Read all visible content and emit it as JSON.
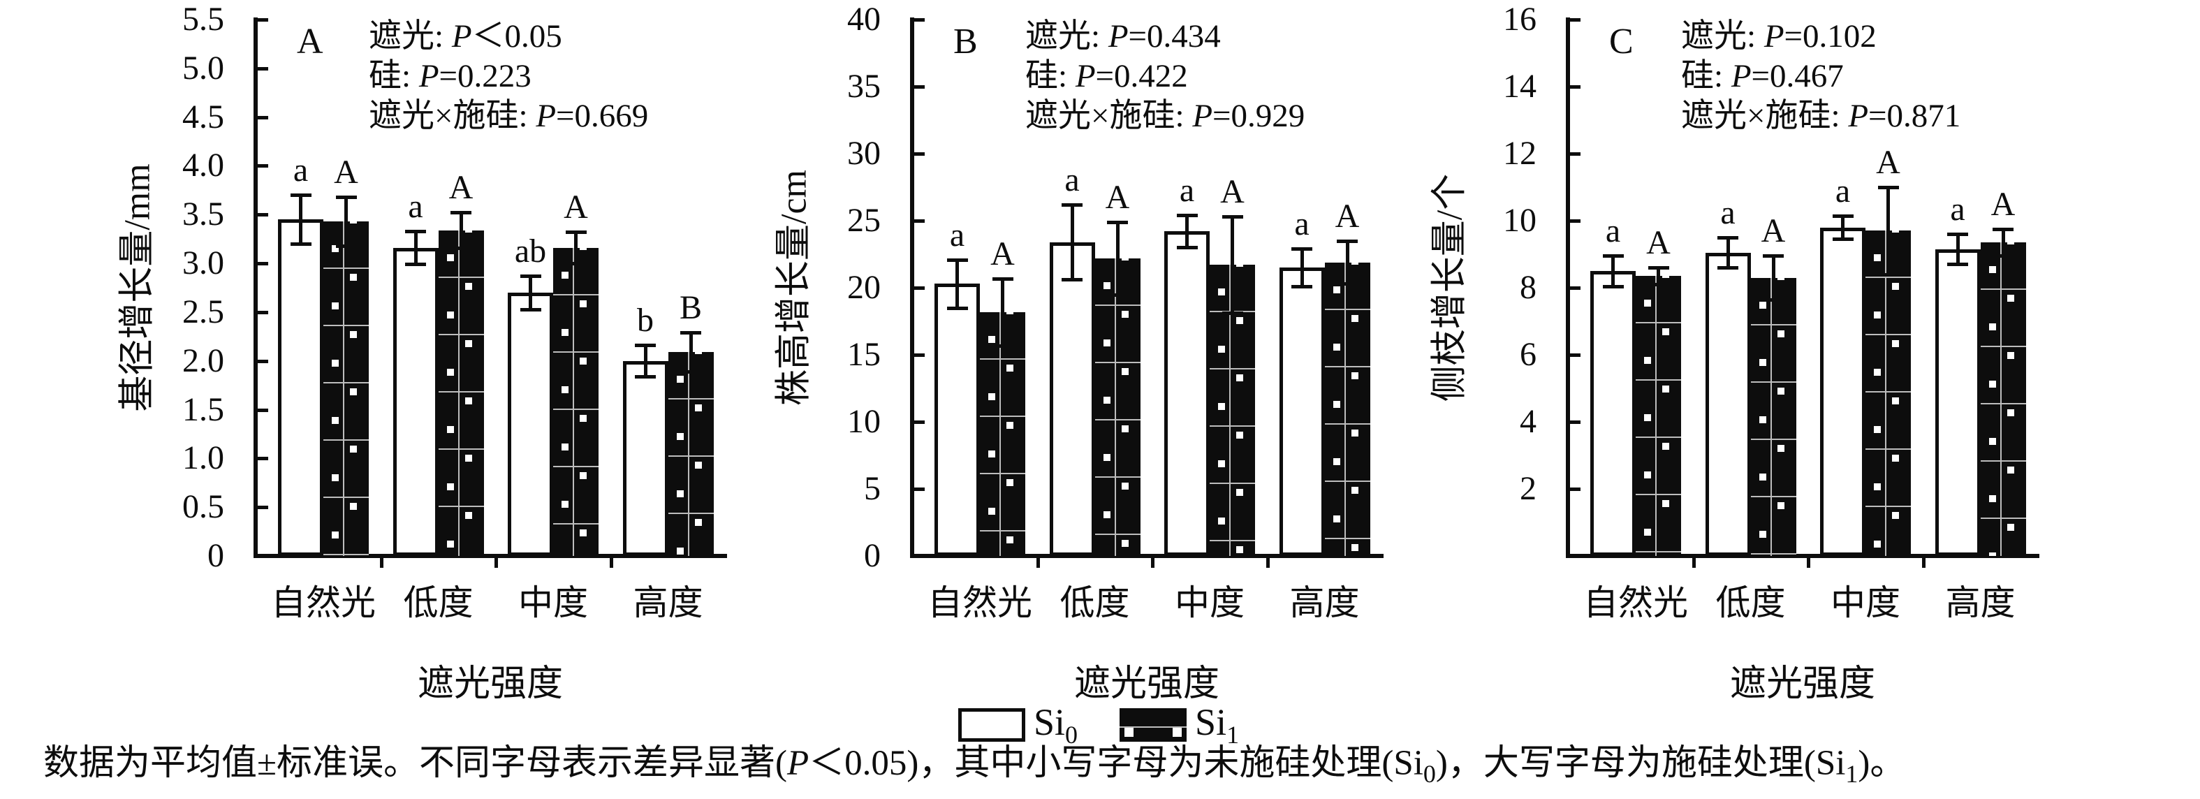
{
  "legend": {
    "items": [
      {
        "label": "Si",
        "sub": "0",
        "swatch": "open"
      },
      {
        "label": "Si",
        "sub": "1",
        "swatch": "dotted-filled"
      }
    ]
  },
  "caption": {
    "seg1": "数据为平均值±标准误。不同字母表示差异显著(",
    "p": "P",
    "seg2": "＜0.05)，其中小写字母为未施硅处理(Si",
    "sub0": "0",
    "seg3": ")，大写字母为施硅处理(Si",
    "sub1": "1",
    "seg4": ")。"
  },
  "chart_data": [
    {
      "type": "bar",
      "panel": "A",
      "ylabel": "基径增长量/mm",
      "xlabel": "遮光强度",
      "ymax": 5.5,
      "ystep": 0.5,
      "ydecimals": 1,
      "show_zero_label": true,
      "categories": [
        "自然光",
        "低度",
        "中度",
        "高度"
      ],
      "stats": [
        {
          "factor": "遮光: ",
          "p": "P",
          "val": "＜0.05"
        },
        {
          "factor": "硅: ",
          "p": "P",
          "val": "=0.223"
        },
        {
          "factor": "遮光×施硅: ",
          "p": "P",
          "val": "=0.669"
        }
      ],
      "series": [
        {
          "name": "Si0",
          "values": [
            3.45,
            3.16,
            2.7,
            2.0
          ],
          "errors": [
            0.25,
            0.17,
            0.17,
            0.16
          ],
          "letters": [
            "a",
            "a",
            "ab",
            "b"
          ]
        },
        {
          "name": "Si1",
          "values": [
            3.43,
            3.34,
            3.16,
            2.09
          ],
          "errors": [
            0.25,
            0.18,
            0.16,
            0.2
          ],
          "letters": [
            "A",
            "A",
            "A",
            "B"
          ]
        }
      ]
    },
    {
      "type": "bar",
      "panel": "B",
      "ylabel": "株高增长量/cm",
      "xlabel": "遮光强度",
      "ymax": 40,
      "ystep": 5,
      "ydecimals": 0,
      "show_zero_label": true,
      "categories": [
        "自然光",
        "低度",
        "中度",
        "高度"
      ],
      "stats": [
        {
          "factor": "遮光: ",
          "p": "P",
          "val": "=0.434"
        },
        {
          "factor": "硅: ",
          "p": "P",
          "val": "=0.422"
        },
        {
          "factor": "遮光×施硅: ",
          "p": "P",
          "val": "=0.929"
        }
      ],
      "series": [
        {
          "name": "Si0",
          "values": [
            20.3,
            23.4,
            24.2,
            21.5
          ],
          "errors": [
            1.8,
            2.8,
            1.2,
            1.4
          ],
          "letters": [
            "a",
            "a",
            "a",
            "a"
          ]
        },
        {
          "name": "Si1",
          "values": [
            18.2,
            22.2,
            21.7,
            21.9
          ],
          "errors": [
            2.5,
            2.7,
            3.6,
            1.6
          ],
          "letters": [
            "A",
            "A",
            "A",
            "A"
          ]
        }
      ]
    },
    {
      "type": "bar",
      "panel": "C",
      "ylabel": "侧枝增长量/个",
      "xlabel": "遮光强度",
      "ymax": 16,
      "ystep": 2,
      "ydecimals": 0,
      "show_zero_label": false,
      "categories": [
        "自然光",
        "低度",
        "中度",
        "高度"
      ],
      "stats": [
        {
          "factor": "遮光: ",
          "p": "P",
          "val": "=0.102"
        },
        {
          "factor": "硅: ",
          "p": "P",
          "val": "=0.467"
        },
        {
          "factor": "遮光×施硅: ",
          "p": "P",
          "val": "=0.871"
        }
      ],
      "series": [
        {
          "name": "Si0",
          "values": [
            8.5,
            9.05,
            9.8,
            9.15
          ],
          "errors": [
            0.45,
            0.45,
            0.35,
            0.45
          ],
          "letters": [
            "a",
            "a",
            "a",
            "a"
          ]
        },
        {
          "name": "Si1",
          "values": [
            8.35,
            8.3,
            9.7,
            9.35
          ],
          "errors": [
            0.25,
            0.65,
            1.3,
            0.4
          ],
          "letters": [
            "A",
            "A",
            "A",
            "A"
          ]
        }
      ]
    }
  ]
}
